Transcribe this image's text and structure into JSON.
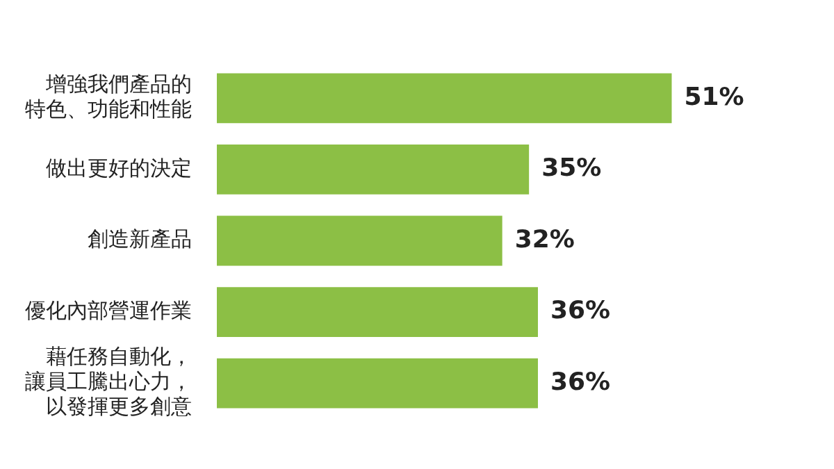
{
  "chart_data": {
    "type": "bar",
    "orientation": "horizontal",
    "categories": [
      "增強我們產品的特色、功能和性能",
      "做出更好的決定",
      "創造新產品",
      "優化內部營運作業",
      "藉任務自動化，讓員工騰出心力，以發揮更多創意"
    ],
    "values": [
      51,
      35,
      32,
      36,
      36
    ],
    "value_labels": [
      "51%",
      "35%",
      "32%",
      "36%",
      "36%"
    ],
    "color": "#8cbf45",
    "legend": false
  }
}
